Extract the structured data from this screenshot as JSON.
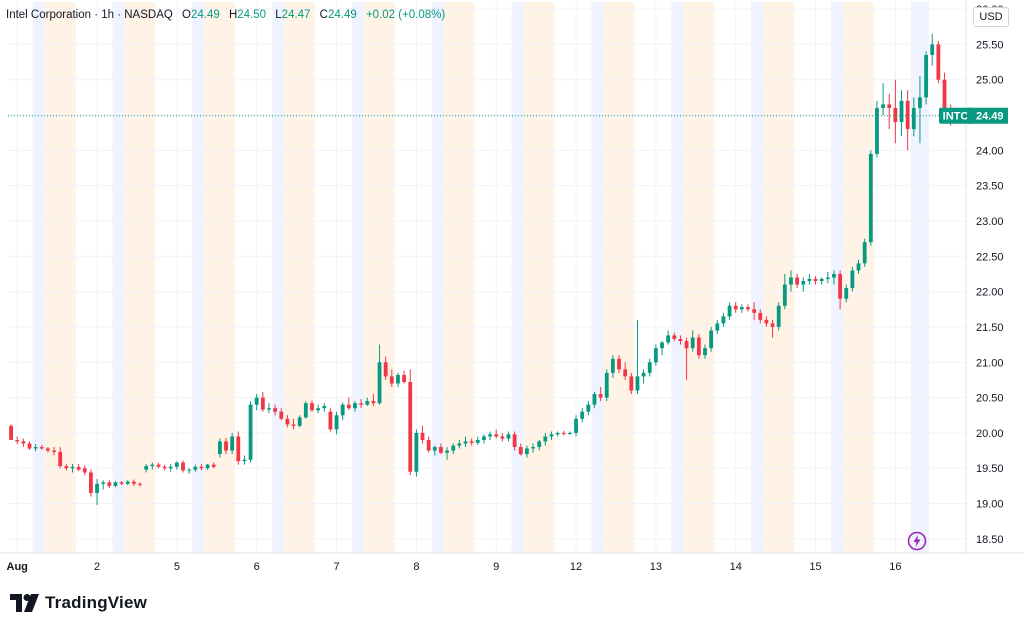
{
  "legend": {
    "symbol": "Intel Corporation · 1h · NASDAQ",
    "o_label": "O",
    "o_value": "24.49",
    "h_label": "H",
    "h_value": "24.50",
    "l_label": "L",
    "l_value": "24.47",
    "c_label": "C",
    "c_value": "24.49",
    "change": "+0.02 (+0.08%)"
  },
  "currency_button": "USD",
  "brand": "TradingView",
  "colors": {
    "up": "#089981",
    "down": "#f23645",
    "premarket_band": "#eef3ff",
    "afterhours_band": "#fff3e6",
    "grid": "#f0f3fa",
    "axis_text": "#131722",
    "last_price_line": "#089981"
  },
  "chart_data": {
    "type": "candlestick",
    "title": "Intel Corporation · 1h · NASDAQ",
    "ticker": "INTC",
    "last_price": 24.49,
    "last_price_label": "24.49",
    "ylim": [
      18.3,
      26.1
    ],
    "y_ticks": [
      "18.50",
      "19.00",
      "19.50",
      "20.00",
      "20.50",
      "21.00",
      "21.50",
      "22.00",
      "22.50",
      "23.00",
      "23.50",
      "24.00",
      "24.50",
      "25.00",
      "25.50",
      "26.00"
    ],
    "x_ticks": [
      {
        "label": "Aug",
        "bar": 1
      },
      {
        "label": "2",
        "bar": 14
      },
      {
        "label": "5",
        "bar": 27
      },
      {
        "label": "6",
        "bar": 40
      },
      {
        "label": "7",
        "bar": 53
      },
      {
        "label": "8",
        "bar": 66
      },
      {
        "label": "9",
        "bar": 79
      },
      {
        "label": "12",
        "bar": 92
      },
      {
        "label": "13",
        "bar": 105
      },
      {
        "label": "14",
        "bar": 118
      },
      {
        "label": "15",
        "bar": 131
      },
      {
        "label": "16",
        "bar": 144
      }
    ],
    "session_bands": [
      {
        "type": "pre",
        "start": 4,
        "end": 6
      },
      {
        "type": "post",
        "start": 6,
        "end": 11
      },
      {
        "type": "pre",
        "start": 17,
        "end": 19
      },
      {
        "type": "post",
        "start": 19,
        "end": 24
      },
      {
        "type": "pre",
        "start": 30,
        "end": 32
      },
      {
        "type": "post",
        "start": 32,
        "end": 37
      },
      {
        "type": "pre",
        "start": 43,
        "end": 45
      },
      {
        "type": "post",
        "start": 45,
        "end": 50
      },
      {
        "type": "pre",
        "start": 56,
        "end": 58
      },
      {
        "type": "post",
        "start": 58,
        "end": 63
      },
      {
        "type": "pre",
        "start": 69,
        "end": 71
      },
      {
        "type": "post",
        "start": 71,
        "end": 76
      },
      {
        "type": "pre",
        "start": 82,
        "end": 84
      },
      {
        "type": "post",
        "start": 84,
        "end": 89
      },
      {
        "type": "pre",
        "start": 95,
        "end": 97
      },
      {
        "type": "post",
        "start": 97,
        "end": 102
      },
      {
        "type": "pre",
        "start": 108,
        "end": 110
      },
      {
        "type": "post",
        "start": 110,
        "end": 115
      },
      {
        "type": "pre",
        "start": 121,
        "end": 123
      },
      {
        "type": "post",
        "start": 123,
        "end": 128
      },
      {
        "type": "pre",
        "start": 134,
        "end": 136
      },
      {
        "type": "post",
        "start": 136,
        "end": 141
      },
      {
        "type": "pre",
        "start": 147,
        "end": 150
      }
    ],
    "bars": [
      [
        20.1,
        20.12,
        19.9,
        19.9
      ],
      [
        19.9,
        19.95,
        19.84,
        19.88
      ],
      [
        19.88,
        19.92,
        19.8,
        19.85
      ],
      [
        19.85,
        19.88,
        19.76,
        19.78
      ],
      [
        19.78,
        19.84,
        19.74,
        19.8
      ],
      [
        19.8,
        19.83,
        19.76,
        19.78
      ],
      [
        19.78,
        19.8,
        19.72,
        19.75
      ],
      [
        19.75,
        19.8,
        19.68,
        19.73
      ],
      [
        19.73,
        19.8,
        19.5,
        19.53
      ],
      [
        19.53,
        19.56,
        19.47,
        19.5
      ],
      [
        19.5,
        19.56,
        19.44,
        19.52
      ],
      [
        19.52,
        19.56,
        19.46,
        19.48
      ],
      [
        19.5,
        19.54,
        19.4,
        19.44
      ],
      [
        19.44,
        19.48,
        19.1,
        19.15
      ],
      [
        19.15,
        19.35,
        18.98,
        19.28
      ],
      [
        19.28,
        19.33,
        19.2,
        19.3
      ],
      [
        19.3,
        19.33,
        19.22,
        19.25
      ],
      [
        19.25,
        19.32,
        19.23,
        19.3
      ],
      [
        19.3,
        19.32,
        19.26,
        19.28
      ],
      [
        19.28,
        19.33,
        19.26,
        19.31
      ],
      [
        19.31,
        19.34,
        19.25,
        19.28
      ],
      [
        19.28,
        19.3,
        19.24,
        19.27
      ],
      [
        19.48,
        19.56,
        19.44,
        19.53
      ],
      [
        19.53,
        19.58,
        19.48,
        19.55
      ],
      [
        19.55,
        19.58,
        19.5,
        19.52
      ],
      [
        19.52,
        19.55,
        19.47,
        19.5
      ],
      [
        19.5,
        19.56,
        19.45,
        19.52
      ],
      [
        19.52,
        19.6,
        19.48,
        19.58
      ],
      [
        19.58,
        19.61,
        19.44,
        19.47
      ],
      [
        19.47,
        19.5,
        19.42,
        19.48
      ],
      [
        19.48,
        19.55,
        19.45,
        19.52
      ],
      [
        19.52,
        19.56,
        19.47,
        19.5
      ],
      [
        19.5,
        19.56,
        19.48,
        19.55
      ],
      [
        19.55,
        19.58,
        19.5,
        19.52
      ],
      [
        19.7,
        19.92,
        19.65,
        19.88
      ],
      [
        19.88,
        19.93,
        19.7,
        19.75
      ],
      [
        19.75,
        20.0,
        19.7,
        19.95
      ],
      [
        19.95,
        20.02,
        19.55,
        19.6
      ],
      [
        19.6,
        19.68,
        19.55,
        19.62
      ],
      [
        19.62,
        20.45,
        19.58,
        20.4
      ],
      [
        20.4,
        20.55,
        20.32,
        20.5
      ],
      [
        20.5,
        20.58,
        20.3,
        20.33
      ],
      [
        20.33,
        20.42,
        20.28,
        20.35
      ],
      [
        20.35,
        20.4,
        20.25,
        20.3
      ],
      [
        20.3,
        20.35,
        20.18,
        20.2
      ],
      [
        20.2,
        20.25,
        20.08,
        20.12
      ],
      [
        20.12,
        20.2,
        20.05,
        20.1
      ],
      [
        20.1,
        20.25,
        20.08,
        20.22
      ],
      [
        20.22,
        20.45,
        20.2,
        20.42
      ],
      [
        20.42,
        20.46,
        20.3,
        20.32
      ],
      [
        20.32,
        20.4,
        20.28,
        20.35
      ],
      [
        20.35,
        20.42,
        20.3,
        20.38
      ],
      [
        20.3,
        20.35,
        20.02,
        20.05
      ],
      [
        20.05,
        20.3,
        19.98,
        20.25
      ],
      [
        20.25,
        20.43,
        20.18,
        20.4
      ],
      [
        20.4,
        20.5,
        20.32,
        20.35
      ],
      [
        20.35,
        20.45,
        20.3,
        20.42
      ],
      [
        20.42,
        20.48,
        20.35,
        20.4
      ],
      [
        20.4,
        20.5,
        20.38,
        20.45
      ],
      [
        20.45,
        20.55,
        20.38,
        20.42
      ],
      [
        20.42,
        21.25,
        20.4,
        21.0
      ],
      [
        21.0,
        21.08,
        20.75,
        20.8
      ],
      [
        20.8,
        20.9,
        20.65,
        20.7
      ],
      [
        20.7,
        20.85,
        20.65,
        20.82
      ],
      [
        20.82,
        20.88,
        20.7,
        20.72
      ],
      [
        20.72,
        20.9,
        19.4,
        19.45
      ],
      [
        19.45,
        20.05,
        19.38,
        20.0
      ],
      [
        20.0,
        20.1,
        19.85,
        19.9
      ],
      [
        19.9,
        19.95,
        19.72,
        19.75
      ],
      [
        19.75,
        19.82,
        19.68,
        19.8
      ],
      [
        19.8,
        19.85,
        19.7,
        19.72
      ],
      [
        19.72,
        19.8,
        19.62,
        19.75
      ],
      [
        19.75,
        19.85,
        19.7,
        19.82
      ],
      [
        19.82,
        19.9,
        19.78,
        19.85
      ],
      [
        19.85,
        19.95,
        19.8,
        19.88
      ],
      [
        19.88,
        19.92,
        19.82,
        19.86
      ],
      [
        19.86,
        19.95,
        19.83,
        19.9
      ],
      [
        19.9,
        19.98,
        19.85,
        19.95
      ],
      [
        19.95,
        20.02,
        19.9,
        19.98
      ],
      [
        19.98,
        20.05,
        19.92,
        19.95
      ],
      [
        19.95,
        20.0,
        19.88,
        19.92
      ],
      [
        19.92,
        20.02,
        19.88,
        19.98
      ],
      [
        19.98,
        20.02,
        19.75,
        19.8
      ],
      [
        19.8,
        19.85,
        19.68,
        19.7
      ],
      [
        19.7,
        19.82,
        19.65,
        19.78
      ],
      [
        19.78,
        19.85,
        19.72,
        19.8
      ],
      [
        19.8,
        19.9,
        19.75,
        19.88
      ],
      [
        19.88,
        20.0,
        19.82,
        19.95
      ],
      [
        19.95,
        20.02,
        19.9,
        19.98
      ],
      [
        19.98,
        20.02,
        19.95,
        20.0
      ],
      [
        20.0,
        20.03,
        19.96,
        19.99
      ],
      [
        19.99,
        20.02,
        19.97,
        20.0
      ],
      [
        20.0,
        20.25,
        19.95,
        20.2
      ],
      [
        20.2,
        20.35,
        20.15,
        20.3
      ],
      [
        20.3,
        20.45,
        20.25,
        20.4
      ],
      [
        20.4,
        20.58,
        20.35,
        20.55
      ],
      [
        20.55,
        20.65,
        20.45,
        20.5
      ],
      [
        20.5,
        20.9,
        20.45,
        20.85
      ],
      [
        20.85,
        21.1,
        20.78,
        21.05
      ],
      [
        21.05,
        21.1,
        20.85,
        20.9
      ],
      [
        20.9,
        21.0,
        20.75,
        20.8
      ],
      [
        20.8,
        20.85,
        20.55,
        20.6
      ],
      [
        20.6,
        21.6,
        20.55,
        20.8
      ],
      [
        20.8,
        20.9,
        20.7,
        20.85
      ],
      [
        20.85,
        21.05,
        20.8,
        21.0
      ],
      [
        21.0,
        21.25,
        20.95,
        21.2
      ],
      [
        21.2,
        21.3,
        21.1,
        21.28
      ],
      [
        21.28,
        21.45,
        21.25,
        21.38
      ],
      [
        21.38,
        21.42,
        21.3,
        21.33
      ],
      [
        21.33,
        21.38,
        21.25,
        21.3
      ],
      [
        21.3,
        21.35,
        20.75,
        21.2
      ],
      [
        21.2,
        21.45,
        21.15,
        21.35
      ],
      [
        21.35,
        21.4,
        21.05,
        21.1
      ],
      [
        21.1,
        21.25,
        21.05,
        21.2
      ],
      [
        21.2,
        21.5,
        21.15,
        21.45
      ],
      [
        21.45,
        21.6,
        21.4,
        21.55
      ],
      [
        21.55,
        21.7,
        21.5,
        21.65
      ],
      [
        21.65,
        21.85,
        21.6,
        21.8
      ],
      [
        21.8,
        21.85,
        21.7,
        21.75
      ],
      [
        21.75,
        21.82,
        21.7,
        21.78
      ],
      [
        21.78,
        21.82,
        21.72,
        21.75
      ],
      [
        21.75,
        21.85,
        21.6,
        21.7
      ],
      [
        21.7,
        21.75,
        21.55,
        21.6
      ],
      [
        21.6,
        21.65,
        21.5,
        21.55
      ],
      [
        21.55,
        21.6,
        21.35,
        21.5
      ],
      [
        21.5,
        21.85,
        21.45,
        21.8
      ],
      [
        21.8,
        22.25,
        21.75,
        22.1
      ],
      [
        22.1,
        22.3,
        22.0,
        22.2
      ],
      [
        22.2,
        22.25,
        22.05,
        22.1
      ],
      [
        22.1,
        22.2,
        22.0,
        22.15
      ],
      [
        22.15,
        22.25,
        22.1,
        22.18
      ],
      [
        22.18,
        22.22,
        22.1,
        22.15
      ],
      [
        22.15,
        22.2,
        22.1,
        22.18
      ],
      [
        22.18,
        22.28,
        22.12,
        22.2
      ],
      [
        22.2,
        22.3,
        22.1,
        22.25
      ],
      [
        22.25,
        22.3,
        21.75,
        21.9
      ],
      [
        21.9,
        22.1,
        21.85,
        22.05
      ],
      [
        22.05,
        22.35,
        22.0,
        22.3
      ],
      [
        22.3,
        22.45,
        22.25,
        22.4
      ],
      [
        22.4,
        22.75,
        22.35,
        22.7
      ],
      [
        22.7,
        24.0,
        22.65,
        23.95
      ],
      [
        23.95,
        24.7,
        23.9,
        24.6
      ],
      [
        24.6,
        24.95,
        24.5,
        24.65
      ],
      [
        24.65,
        24.8,
        24.3,
        24.6
      ],
      [
        24.6,
        25.0,
        24.1,
        24.4
      ],
      [
        24.4,
        24.85,
        24.2,
        24.7
      ],
      [
        24.7,
        24.85,
        24.0,
        24.3
      ],
      [
        24.3,
        24.75,
        24.2,
        24.6
      ],
      [
        24.6,
        25.05,
        24.1,
        24.75
      ],
      [
        24.75,
        25.4,
        24.65,
        25.35
      ],
      [
        25.35,
        25.65,
        25.2,
        25.5
      ],
      [
        25.5,
        25.55,
        24.95,
        25.0
      ],
      [
        25.0,
        25.1,
        24.55,
        24.6
      ],
      [
        24.6,
        24.65,
        24.35,
        24.45
      ],
      [
        24.45,
        24.52,
        24.42,
        24.48
      ],
      [
        24.49,
        24.5,
        24.47,
        24.49
      ]
    ]
  }
}
